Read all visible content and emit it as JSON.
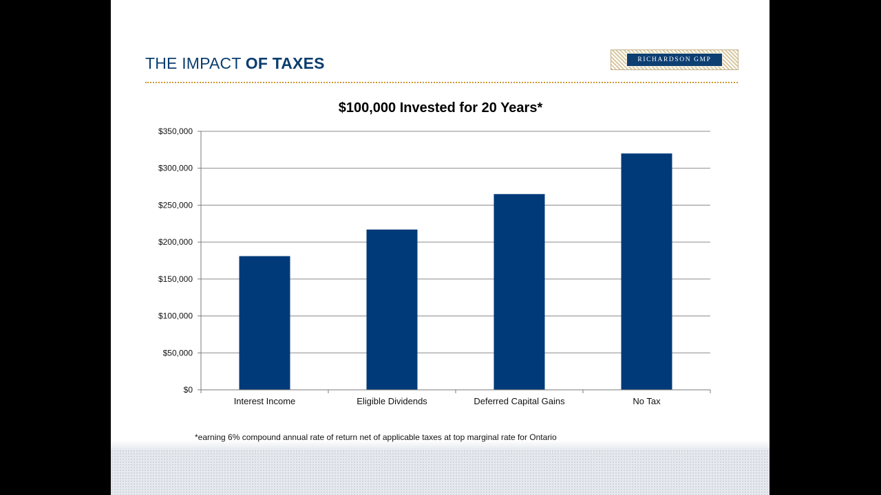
{
  "slide": {
    "title_prefix": "THE IMPACT",
    "title_emphasis": "OF TAXES",
    "logo_text": "RICHARDSON GMP",
    "footnote": "*earning 6% compound annual rate of return net of applicable taxes at top marginal rate for Ontario"
  },
  "colors": {
    "bar": "#003a78",
    "title": "#0a3d6e",
    "rule": "#c9962e",
    "grid": "#8a8a8a"
  },
  "chart_data": {
    "type": "bar",
    "title": "$100,000 Invested for 20 Years*",
    "xlabel": "",
    "ylabel": "",
    "categories": [
      "Interest Income",
      "Eligible Dividends",
      "Deferred Capital Gains",
      "No Tax"
    ],
    "values": [
      181000,
      217000,
      265000,
      320000
    ],
    "ylim": [
      0,
      350000
    ],
    "yticks": [
      0,
      50000,
      100000,
      150000,
      200000,
      250000,
      300000,
      350000
    ],
    "ytick_labels": [
      "$0",
      "$50,000",
      "$100,000",
      "$150,000",
      "$200,000",
      "$250,000",
      "$300,000",
      "$350,000"
    ],
    "grid": true,
    "legend": "none"
  }
}
